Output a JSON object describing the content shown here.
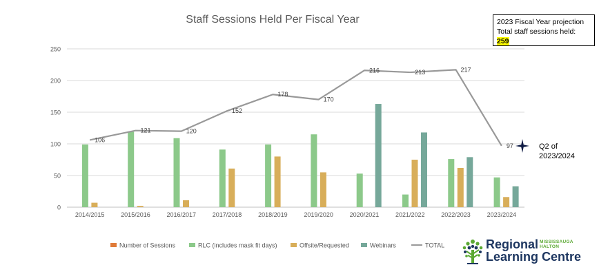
{
  "chart_data": {
    "type": "bar",
    "title": "Staff Sessions Held Per Fiscal Year",
    "categories": [
      "2014/2015",
      "2015/2016",
      "2016/2017",
      "2017/2018",
      "2018/2019",
      "2019/2020",
      "2020/2021",
      "2021/2022",
      "2022/2023",
      "2023/2024"
    ],
    "ylim": [
      0,
      250
    ],
    "yticks": [
      0,
      50,
      100,
      150,
      200,
      250
    ],
    "grid": true,
    "legend_position": "bottom",
    "series": [
      {
        "name": "Number of Sessions",
        "kind": "bar",
        "color": "#E07B39",
        "values": [
          0,
          0,
          0,
          0,
          0,
          0,
          0,
          0,
          0,
          0
        ]
      },
      {
        "name": "RLC (includes mask fit days)",
        "kind": "bar",
        "color": "#8CC98A",
        "values": [
          99,
          119,
          109,
          91,
          99,
          115,
          53,
          20,
          76,
          47
        ]
      },
      {
        "name": "Offsite/Requested",
        "kind": "bar",
        "color": "#D8AE5A",
        "values": [
          7,
          2,
          11,
          61,
          80,
          55,
          0,
          75,
          62,
          16
        ]
      },
      {
        "name": "Webinars",
        "kind": "bar",
        "color": "#76A89A",
        "values": [
          0,
          0,
          0,
          0,
          0,
          0,
          163,
          118,
          79,
          33
        ]
      },
      {
        "name": "TOTAL",
        "kind": "line",
        "color": "#999999",
        "values": [
          106,
          121,
          120,
          152,
          178,
          170,
          216,
          213,
          217,
          97
        ]
      }
    ]
  },
  "callout": {
    "line1": "2023 Fiscal Year projection",
    "line2": "Total staff sessions held:",
    "value": "259"
  },
  "annotation": {
    "text": "Q2 of\n2023/2024",
    "marker_icon": "four-point-star-icon"
  },
  "logo": {
    "word1": "Regional",
    "word2": "Learning Centre",
    "tag1": "MISSISSAUGA",
    "tag2": "HALTON",
    "icon": "tree-icon",
    "color_primary": "#1d3660",
    "color_accent": "#5aa832"
  }
}
